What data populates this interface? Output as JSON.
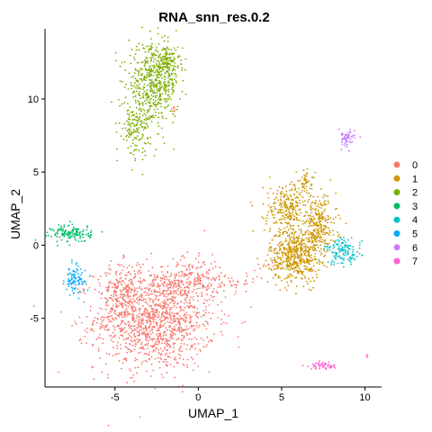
{
  "chart_data": {
    "type": "scatter",
    "title": "RNA_snn_res.0.2",
    "xlabel": "UMAP_1",
    "ylabel": "UMAP_2",
    "xlim": [
      -9.2,
      11.0
    ],
    "ylim": [
      -9.7,
      14.8
    ],
    "x_ticks": [
      -5,
      0,
      5,
      10
    ],
    "y_ticks": [
      -5,
      0,
      5,
      10
    ],
    "x_tick_labels": [
      "-5",
      "0",
      "5",
      "10"
    ],
    "y_tick_labels": [
      "-5",
      "0",
      "5",
      "10"
    ],
    "grid": false,
    "legend_position": "right",
    "series": [
      {
        "name": "0",
        "color": "#F8766D",
        "clusters": [
          {
            "cx": -2.6,
            "cy": -5.0,
            "sx": 1.8,
            "sy": 1.75,
            "n": 1300
          },
          {
            "cx": -4.6,
            "cy": -3.2,
            "sx": 0.6,
            "sy": 1.0,
            "n": 170
          },
          {
            "cx": -0.5,
            "cy": -2.4,
            "sx": 0.9,
            "sy": 0.7,
            "n": 160
          },
          {
            "cx": 1.6,
            "cy": -2.5,
            "sx": 1.0,
            "sy": 0.35,
            "n": 55
          },
          {
            "cx": 4.0,
            "cy": -1.3,
            "sx": 0.35,
            "sy": 0.25,
            "n": 12
          },
          {
            "cx": -1.4,
            "cy": 9.4,
            "sx": 0.12,
            "sy": 0.12,
            "n": 6
          }
        ]
      },
      {
        "name": "1",
        "color": "#CD9600",
        "clusters": [
          {
            "cx": 5.8,
            "cy": -0.7,
            "sx": 0.75,
            "sy": 0.9,
            "n": 520
          },
          {
            "cx": 5.4,
            "cy": 2.5,
            "sx": 0.7,
            "sy": 0.9,
            "n": 260
          },
          {
            "cx": 7.2,
            "cy": 1.3,
            "sx": 0.55,
            "sy": 1.0,
            "n": 260
          },
          {
            "cx": 6.5,
            "cy": 4.3,
            "sx": 0.25,
            "sy": 0.35,
            "n": 40
          }
        ]
      },
      {
        "name": "2",
        "color": "#7CAE00",
        "clusters": [
          {
            "cx": -2.7,
            "cy": 11.0,
            "sx": 0.75,
            "sy": 1.3,
            "n": 520
          },
          {
            "cx": -3.8,
            "cy": 8.0,
            "sx": 0.45,
            "sy": 0.9,
            "n": 140
          },
          {
            "cx": -1.8,
            "cy": 12.6,
            "sx": 0.4,
            "sy": 0.55,
            "n": 120
          }
        ]
      },
      {
        "name": "3",
        "color": "#00BE67",
        "clusters": [
          {
            "cx": -7.6,
            "cy": 0.8,
            "sx": 0.6,
            "sy": 0.3,
            "n": 140
          }
        ]
      },
      {
        "name": "4",
        "color": "#00BFC4",
        "clusters": [
          {
            "cx": 8.7,
            "cy": -0.45,
            "sx": 0.55,
            "sy": 0.45,
            "n": 130
          }
        ]
      },
      {
        "name": "5",
        "color": "#00A9FF",
        "clusters": [
          {
            "cx": -7.4,
            "cy": -2.4,
            "sx": 0.3,
            "sy": 0.5,
            "n": 90
          }
        ]
      },
      {
        "name": "6",
        "color": "#C77CFF",
        "clusters": [
          {
            "cx": 8.9,
            "cy": 7.3,
            "sx": 0.25,
            "sy": 0.3,
            "n": 60
          }
        ]
      },
      {
        "name": "7",
        "color": "#FF61CC",
        "clusters": [
          {
            "cx": 7.5,
            "cy": -8.25,
            "sx": 0.4,
            "sy": 0.12,
            "n": 50
          },
          {
            "cx": 10.1,
            "cy": -7.6,
            "sx": 0.06,
            "sy": 0.06,
            "n": 4
          }
        ]
      }
    ]
  }
}
